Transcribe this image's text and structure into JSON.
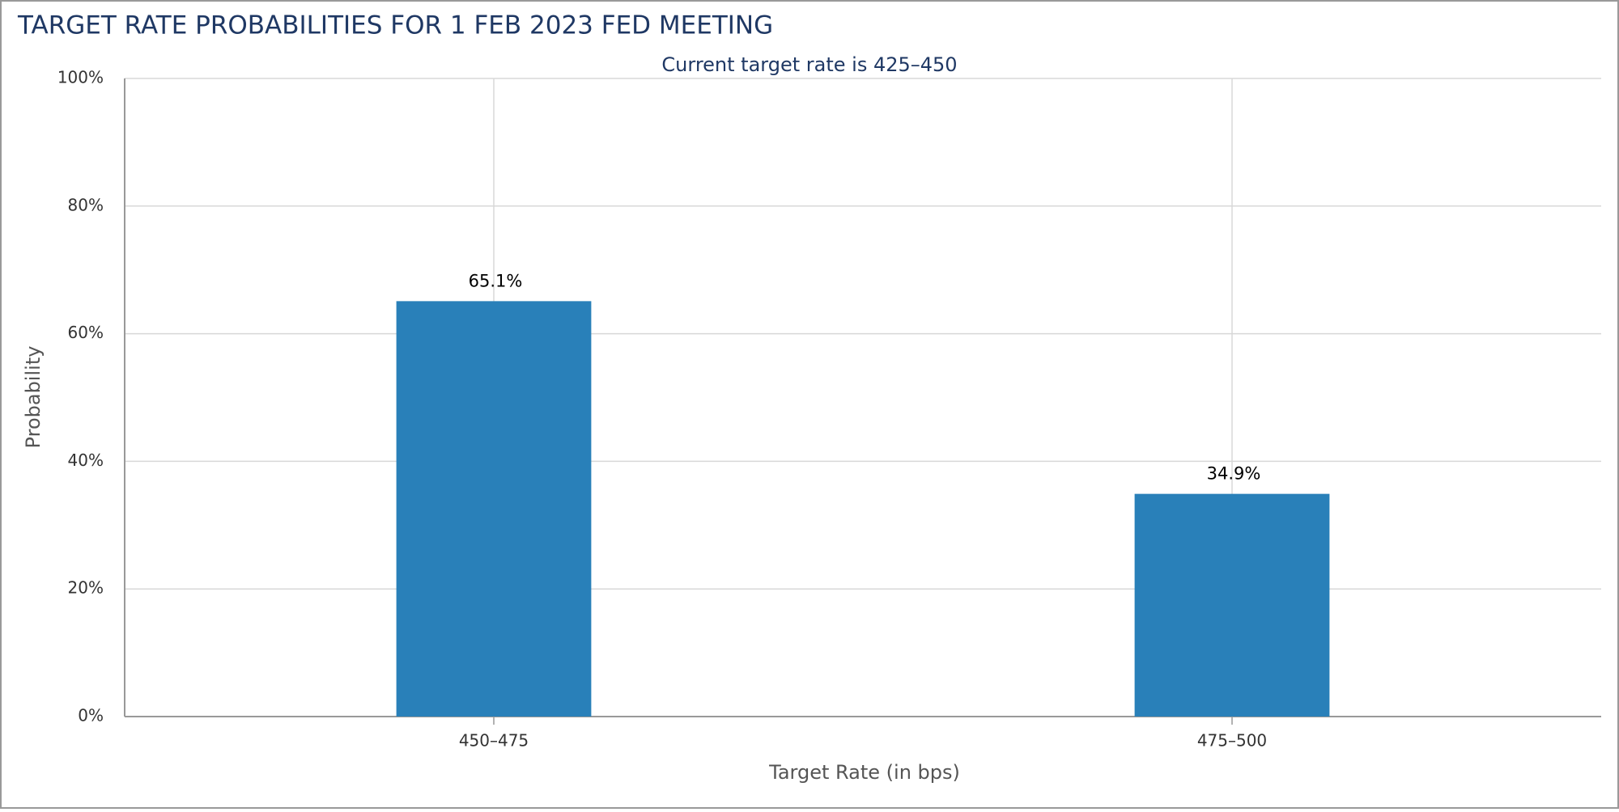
{
  "chart_data": {
    "type": "bar",
    "title": "TARGET RATE PROBABILITIES FOR 1 FEB 2023 FED MEETING",
    "subtitle": "Current target rate is 425–450",
    "x_label": "Target Rate (in bps)",
    "y_label": "Probability",
    "categories": [
      "450–475",
      "475–500"
    ],
    "values": [
      65.1,
      34.9
    ],
    "value_labels": [
      "65.1%",
      "34.9%"
    ],
    "color": "#2980b9",
    "ylim": [
      0,
      100
    ],
    "yticks": [
      {
        "value": 0,
        "label": "0%"
      },
      {
        "value": 20,
        "label": "20%"
      },
      {
        "value": 40,
        "label": "40%"
      },
      {
        "value": 60,
        "label": "60%"
      },
      {
        "value": 80,
        "label": "80%"
      },
      {
        "value": 100,
        "label": "100%"
      }
    ],
    "grid": true
  }
}
